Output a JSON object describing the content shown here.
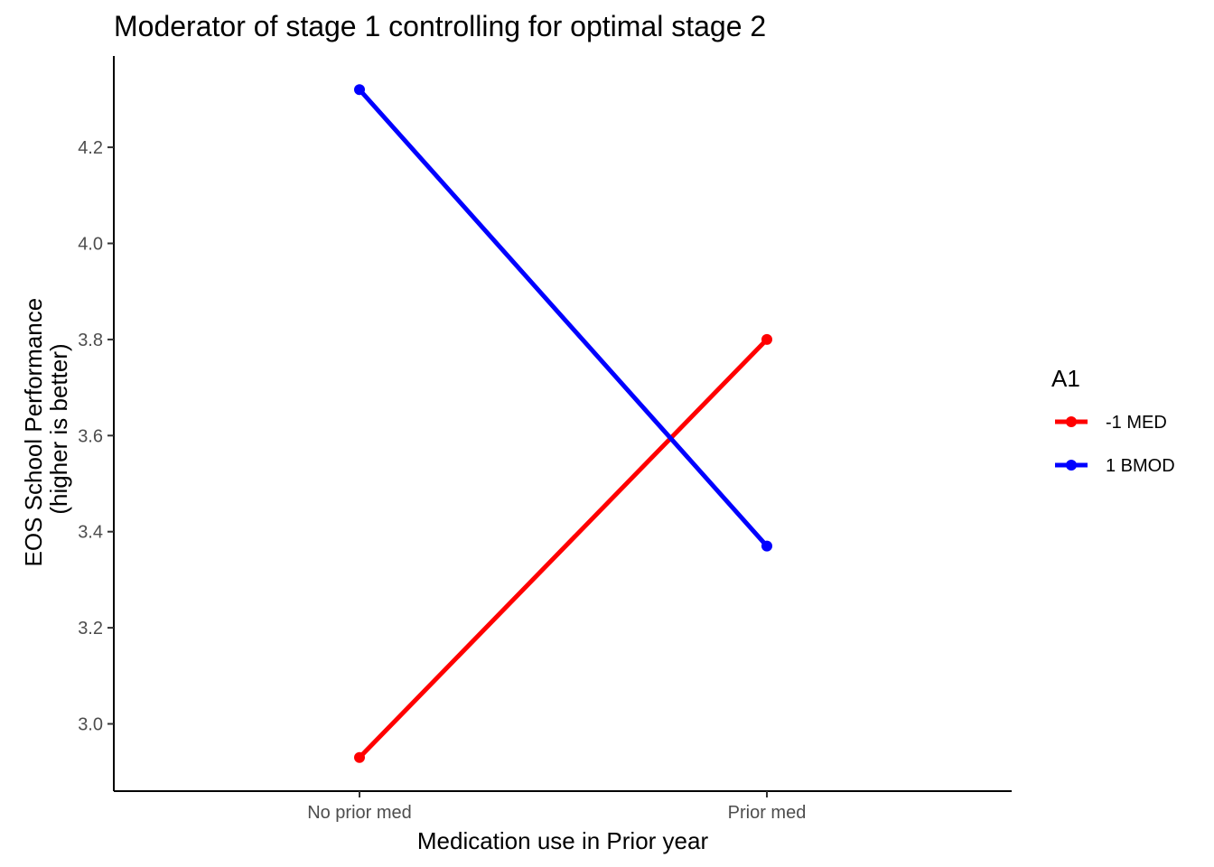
{
  "chart_data": {
    "type": "line",
    "title": "Moderator of stage 1 controlling for optimal stage 2",
    "xlabel": "Medication use in Prior year",
    "ylabel_lines": [
      "EOS School Performance",
      "(higher is better)"
    ],
    "categories": [
      "No prior med",
      "Prior med"
    ],
    "ylim": [
      2.86,
      4.39
    ],
    "yticks": [
      3.0,
      3.2,
      3.4,
      3.6,
      3.8,
      4.0,
      4.2
    ],
    "ytick_labels": [
      "3.0",
      "3.2",
      "3.4",
      "3.6",
      "3.8",
      "4.0",
      "4.2"
    ],
    "grid": false,
    "legend": {
      "title": "A1",
      "position": "right"
    },
    "series": [
      {
        "name": "-1 MED",
        "color": "#ff0000",
        "values": [
          2.93,
          3.8
        ]
      },
      {
        "name": "1 BMOD",
        "color": "#0000ff",
        "values": [
          4.32,
          3.37
        ]
      }
    ]
  }
}
